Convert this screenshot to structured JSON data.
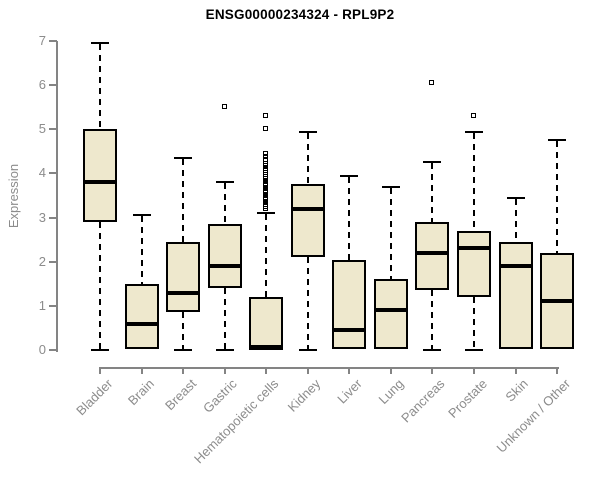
{
  "chart_data": {
    "type": "boxplot",
    "title": "ENSG00000234324 - RPL9P2",
    "ylabel": "Expression",
    "ylim": [
      0,
      7
    ],
    "y_ticks": [
      0,
      1,
      2,
      3,
      4,
      5,
      6,
      7
    ],
    "grid": false,
    "legend": false,
    "colors": {
      "box_fill": "#EEE8CD",
      "box_border": "#000000",
      "median": "#000000",
      "whisker": "#000000",
      "axis_line": "#848484",
      "tick_label": "#8C8C8C",
      "title": "#000000",
      "background": "#FFFFFF"
    },
    "groups": [
      {
        "label": "Bladder",
        "lo": 0,
        "q1": 2.9,
        "med": 3.8,
        "q3": 5.0,
        "hi": 6.95,
        "outliers": []
      },
      {
        "label": "Brain",
        "lo": 0.02,
        "q1": 0.02,
        "med": 0.6,
        "q3": 1.5,
        "hi": 3.05,
        "outliers": []
      },
      {
        "label": "Breast",
        "lo": 0,
        "q1": 0.85,
        "med": 1.3,
        "q3": 2.45,
        "hi": 4.35,
        "outliers": []
      },
      {
        "label": "Gastric",
        "lo": 0,
        "q1": 1.4,
        "med": 1.9,
        "q3": 2.85,
        "hi": 3.8,
        "outliers": [
          5.5
        ]
      },
      {
        "label": "Hematopoietic cells",
        "lo": 0,
        "q1": 0,
        "med": 0.06,
        "q3": 1.2,
        "hi": 3.1,
        "outliers": [
          3.2,
          3.24,
          3.28,
          3.32,
          3.36,
          3.4,
          3.44,
          3.48,
          3.52,
          3.56,
          3.6,
          3.64,
          3.68,
          3.72,
          3.76,
          3.8,
          3.84,
          3.88,
          3.92,
          3.96,
          4.0,
          4.05,
          4.1,
          4.16,
          4.22,
          4.3,
          4.38,
          4.44,
          5.0,
          5.3
        ]
      },
      {
        "label": "Kidney",
        "lo": 0,
        "q1": 2.1,
        "med": 3.2,
        "q3": 3.75,
        "hi": 4.95,
        "outliers": []
      },
      {
        "label": "Liver",
        "lo": 0.02,
        "q1": 0.02,
        "med": 0.45,
        "q3": 2.05,
        "hi": 3.95,
        "outliers": []
      },
      {
        "label": "Lung",
        "lo": 0.02,
        "q1": 0.02,
        "med": 0.9,
        "q3": 1.6,
        "hi": 3.7,
        "outliers": []
      },
      {
        "label": "Pancreas",
        "lo": 0,
        "q1": 1.35,
        "med": 2.2,
        "q3": 2.9,
        "hi": 4.25,
        "outliers": [
          6.05
        ]
      },
      {
        "label": "Prostate",
        "lo": 0,
        "q1": 1.2,
        "med": 2.3,
        "q3": 2.7,
        "hi": 4.95,
        "outliers": [
          5.3
        ]
      },
      {
        "label": "Skin",
        "lo": 0.02,
        "q1": 0.02,
        "med": 1.9,
        "q3": 2.45,
        "hi": 3.45,
        "outliers": []
      },
      {
        "label": "Unknown / Other",
        "lo": 0.02,
        "q1": 0.02,
        "med": 1.1,
        "q3": 2.2,
        "hi": 4.75,
        "outliers": []
      }
    ]
  }
}
